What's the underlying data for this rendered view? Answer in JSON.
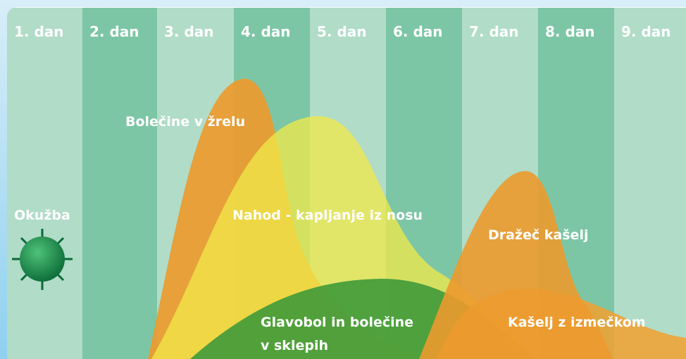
{
  "days": [
    "1. dan",
    "2. dan",
    "3. dan",
    "4. dan",
    "5. dan",
    "6. dan",
    "7. dan",
    "8. dan",
    "9. dan"
  ],
  "infection": "Okužba",
  "symptoms": {
    "sore_throat": "Bolečine v žrelu",
    "runny_nose": "Nahod - kapljanje iz nosu",
    "headache": [
      "Glavobol in bolečine",
      "v sklepih"
    ],
    "dry_cough": "Dražeč kašelj",
    "wet_cough": "Kašelj z izmečkom"
  }
}
